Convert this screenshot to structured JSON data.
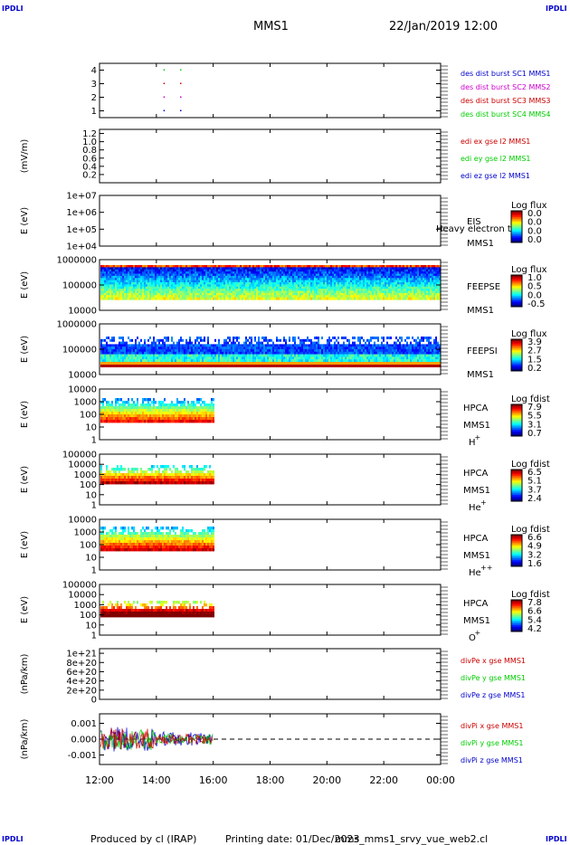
{
  "header": {
    "corner_label": "IPDLI",
    "mission": "MMS1",
    "date_time": "22/Jan/2019 12:00"
  },
  "footer": {
    "produced_by": "Produced by cl (IRAP)",
    "printing_date": "Printing date: 01/Dec/2023",
    "filename": "mms_mms1_srvy_vue_web2.cl"
  },
  "colors": {
    "blue": "#0000cc",
    "magenta": "#cc00cc",
    "red": "#cc0000",
    "green": "#00cc00"
  },
  "chart_data": [
    {
      "type": "scatter",
      "panel": "des-dist-burst",
      "ylabel": "",
      "yticks": [
        "1",
        "2",
        "3",
        "4"
      ],
      "ylim": [
        0.5,
        4.5
      ],
      "x_range": [
        "12:00",
        "00:00"
      ],
      "legend": [
        {
          "label": "des dist burst SC1 MMS1",
          "color": "#0000cc"
        },
        {
          "label": "des dist burst SC2 MMS2",
          "color": "#cc00cc"
        },
        {
          "label": "des dist burst SC3 MMS3",
          "color": "#cc0000"
        },
        {
          "label": "des dist burst SC4 MMS4",
          "color": "#00cc00"
        }
      ],
      "points": [
        {
          "x": "14:15",
          "y": 4,
          "series": 4
        },
        {
          "x": "14:50",
          "y": 4,
          "series": 4
        },
        {
          "x": "14:15",
          "y": 3,
          "series": 3
        },
        {
          "x": "14:50",
          "y": 3,
          "series": 3
        },
        {
          "x": "14:15",
          "y": 2,
          "series": 2
        },
        {
          "x": "14:50",
          "y": 2,
          "series": 2
        },
        {
          "x": "14:15",
          "y": 1,
          "series": 1
        },
        {
          "x": "14:50",
          "y": 1,
          "series": 1
        }
      ]
    },
    {
      "type": "line",
      "panel": "edi-e",
      "ylabel": "(mV/m)",
      "yticks": [
        "0.2",
        "0.4",
        "0.6",
        "0.8",
        "1.0",
        "1.2"
      ],
      "ylim": [
        0,
        1.3
      ],
      "legend": [
        {
          "label": "edi ex gse l2 MMS1",
          "color": "#cc0000"
        },
        {
          "label": "edi ey gse l2 MMS1",
          "color": "#00cc00"
        },
        {
          "label": "edi ez gse l2 MMS1",
          "color": "#0000cc"
        }
      ]
    },
    {
      "type": "heatmap",
      "panel": "eis",
      "ylabel": "E (eV)",
      "yticks": [
        "1e+04",
        "1e+05",
        "1e+06",
        "1e+07"
      ],
      "ylim": [
        10000,
        10000000
      ],
      "instrument": [
        "EIS",
        "MMS1"
      ],
      "overlay_label": "Heavy electron tof",
      "scale_title": "Log flux",
      "scale_ticks": [
        "0.0",
        "0.0",
        "0.0",
        "0.0"
      ]
    },
    {
      "type": "heatmap",
      "panel": "feeps-e",
      "ylabel": "E (eV)",
      "yticks": [
        "10000",
        "100000",
        "1000000"
      ],
      "ylim": [
        10000,
        1000000
      ],
      "instrument": [
        "FEEPSE",
        "MMS1"
      ],
      "scale_title": "Log flux",
      "scale_ticks": [
        "1.0",
        "0.5",
        "0.0",
        "-0.5"
      ],
      "time_coverage": [
        "12:00",
        "00:00"
      ]
    },
    {
      "type": "heatmap",
      "panel": "feeps-i",
      "ylabel": "E (eV)",
      "yticks": [
        "10000",
        "100000",
        "1000000"
      ],
      "ylim": [
        10000,
        1000000
      ],
      "instrument": [
        "FEEPSI",
        "MMS1"
      ],
      "scale_title": "Log flux",
      "scale_ticks": [
        "3.9",
        "2.7",
        "1.5",
        "0.2"
      ],
      "time_coverage": [
        "12:00",
        "00:00"
      ]
    },
    {
      "type": "heatmap",
      "panel": "hpca-h",
      "ylabel": "E (eV)",
      "yticks": [
        "1",
        "10",
        "100",
        "1000",
        "10000"
      ],
      "ylim": [
        1,
        10000
      ],
      "instrument": [
        "HPCA",
        "MMS1"
      ],
      "species": "H",
      "charge": "+",
      "scale_title": "Log fdist",
      "scale_ticks": [
        "7.9",
        "5.5",
        "3.1",
        "0.7"
      ],
      "time_coverage": [
        "12:00",
        "16:00"
      ]
    },
    {
      "type": "heatmap",
      "panel": "hpca-he",
      "ylabel": "E (eV)",
      "yticks": [
        "1",
        "10",
        "100",
        "1000",
        "10000",
        "100000"
      ],
      "ylim": [
        1,
        100000
      ],
      "instrument": [
        "HPCA",
        "MMS1"
      ],
      "species": "He",
      "charge": "+",
      "scale_title": "Log fdist",
      "scale_ticks": [
        "6.5",
        "5.1",
        "3.7",
        "2.4"
      ],
      "time_coverage": [
        "12:00",
        "16:00"
      ]
    },
    {
      "type": "heatmap",
      "panel": "hpca-hepp",
      "ylabel": "E (eV)",
      "yticks": [
        "1",
        "10",
        "100",
        "1000",
        "10000"
      ],
      "ylim": [
        1,
        10000
      ],
      "instrument": [
        "HPCA",
        "MMS1"
      ],
      "species": "He",
      "charge": "++",
      "scale_title": "Log fdist",
      "scale_ticks": [
        "6.6",
        "4.9",
        "3.2",
        "1.6"
      ],
      "time_coverage": [
        "12:00",
        "16:00"
      ]
    },
    {
      "type": "heatmap",
      "panel": "hpca-o",
      "ylabel": "E (eV)",
      "yticks": [
        "1",
        "10",
        "100",
        "1000",
        "10000",
        "100000"
      ],
      "ylim": [
        1,
        100000
      ],
      "instrument": [
        "HPCA",
        "MMS1"
      ],
      "species": "O",
      "charge": "+",
      "scale_title": "Log fdist",
      "scale_ticks": [
        "7.8",
        "6.6",
        "5.4",
        "4.2"
      ],
      "time_coverage": [
        "12:00",
        "16:00"
      ]
    },
    {
      "type": "line",
      "panel": "divpe",
      "ylabel": "(nPa/km)",
      "yticks": [
        "0",
        "2e+20",
        "4e+20",
        "6e+20",
        "8e+20",
        "1e+21"
      ],
      "ylim": [
        0,
        1.1e+21
      ],
      "zero_line": true,
      "legend": [
        {
          "label": "divPe x gse MMS1",
          "color": "#cc0000"
        },
        {
          "label": "divPe y gse MMS1",
          "color": "#00cc00"
        },
        {
          "label": "divPe z gse MMS1",
          "color": "#0000cc"
        }
      ]
    },
    {
      "type": "line",
      "panel": "divpi",
      "ylabel": "(nPa/km)",
      "yticks": [
        "-0.001",
        "0.000",
        "0.001"
      ],
      "ylim": [
        -0.0016,
        0.0016
      ],
      "zero_line": true,
      "time_coverage": [
        "12:00",
        "16:00"
      ],
      "legend": [
        {
          "label": "divPi x gse MMS1",
          "color": "#cc0000"
        },
        {
          "label": "divPi y gse MMS1",
          "color": "#00cc00"
        },
        {
          "label": "divPi z gse MMS1",
          "color": "#0000cc"
        }
      ]
    }
  ],
  "x_axis": {
    "ticks": [
      "12:00",
      "14:00",
      "16:00",
      "18:00",
      "20:00",
      "22:00",
      "00:00"
    ]
  }
}
